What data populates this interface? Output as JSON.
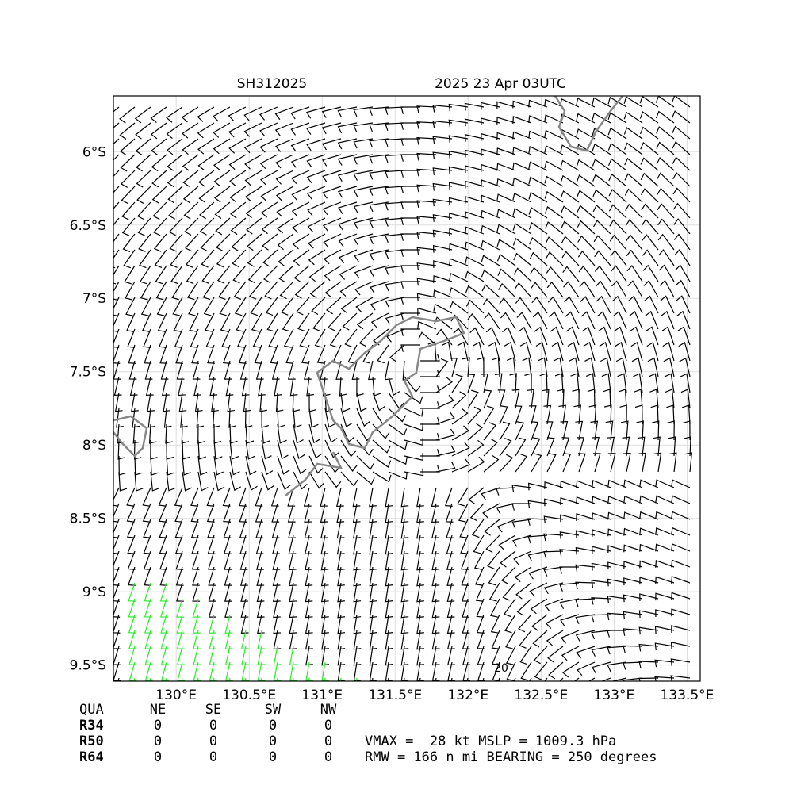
{
  "map": {
    "title": "SH312025",
    "time": "2025 23 Apr 03UTC",
    "xlim": [
      129.57,
      133.59
    ],
    "ylim": [
      -5.62,
      -9.61
    ],
    "xticks": [
      {
        "value": 130,
        "label": "130°E"
      },
      {
        "value": 130.5,
        "label": "130.5°E"
      },
      {
        "value": 131,
        "label": "131°E"
      },
      {
        "value": 131.5,
        "label": "131.5°E"
      },
      {
        "value": 132,
        "label": "132°E"
      },
      {
        "value": 132.5,
        "label": "132.5°E"
      },
      {
        "value": 133,
        "label": "133°E"
      },
      {
        "value": 133.5,
        "label": "133.5°E"
      }
    ],
    "yticks": [
      {
        "value": -6,
        "label": "6°S"
      },
      {
        "value": -6.5,
        "label": "6.5°S"
      },
      {
        "value": -7,
        "label": "7°S"
      },
      {
        "value": -7.5,
        "label": "7.5°S"
      },
      {
        "value": -8,
        "label": "8°S"
      },
      {
        "value": -8.5,
        "label": "8.5°S"
      },
      {
        "value": -9,
        "label": "9°S"
      },
      {
        "value": -9.5,
        "label": "9.5°S"
      }
    ],
    "contour_label": "20"
  },
  "table": {
    "header": [
      "QUA",
      "NE",
      "SE",
      "SW",
      "NW"
    ],
    "rows": [
      [
        "R34",
        "0",
        "0",
        "0",
        "0"
      ],
      [
        "R50",
        "0",
        "0",
        "0",
        "0"
      ],
      [
        "R64",
        "0",
        "0",
        "0",
        "0"
      ]
    ]
  },
  "info": [
    "VMAX =  28 kt MSLP = 1009.3 hPa",
    "RMW = 166 n mi BEARING = 250 degrees"
  ]
}
